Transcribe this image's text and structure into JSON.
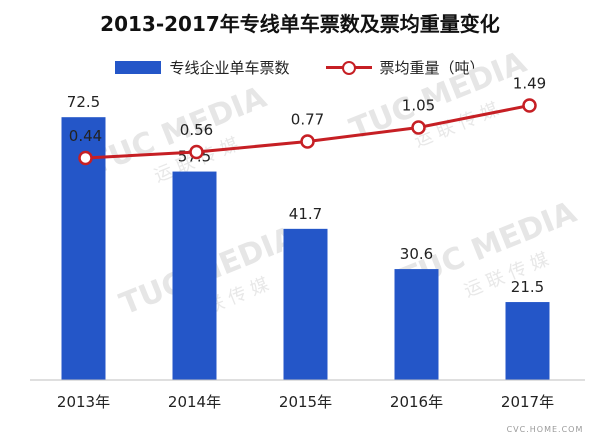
{
  "chart_data": {
    "type": "bar",
    "title": "2013-2017年专线单车票数及票均重量变化",
    "categories": [
      "2013年",
      "2014年",
      "2015年",
      "2016年",
      "2017年"
    ],
    "series": [
      {
        "name": "专线企业单车票数",
        "type": "bar",
        "values": [
          72.5,
          57.5,
          41.7,
          30.6,
          21.5
        ],
        "labels": [
          "72.5",
          "57.5",
          "41.7",
          "30.6",
          "21.5"
        ],
        "color": "#2456c8"
      },
      {
        "name": "票均重量（吨）",
        "type": "line",
        "values": [
          0.44,
          0.56,
          0.77,
          1.05,
          1.49
        ],
        "labels": [
          "0.44",
          "0.56",
          "0.77",
          "1.05",
          "1.49"
        ],
        "color": "#c61f24"
      }
    ],
    "ylim": [
      0,
      80
    ],
    "ylim_secondary": [
      -4,
      2
    ],
    "grid": false,
    "legend": "top"
  },
  "watermark": {
    "text": "TUC MEDIA",
    "cn": "运 联 传 媒"
  },
  "source_stamp": {
    "text": "CVC.HOME.COM"
  }
}
